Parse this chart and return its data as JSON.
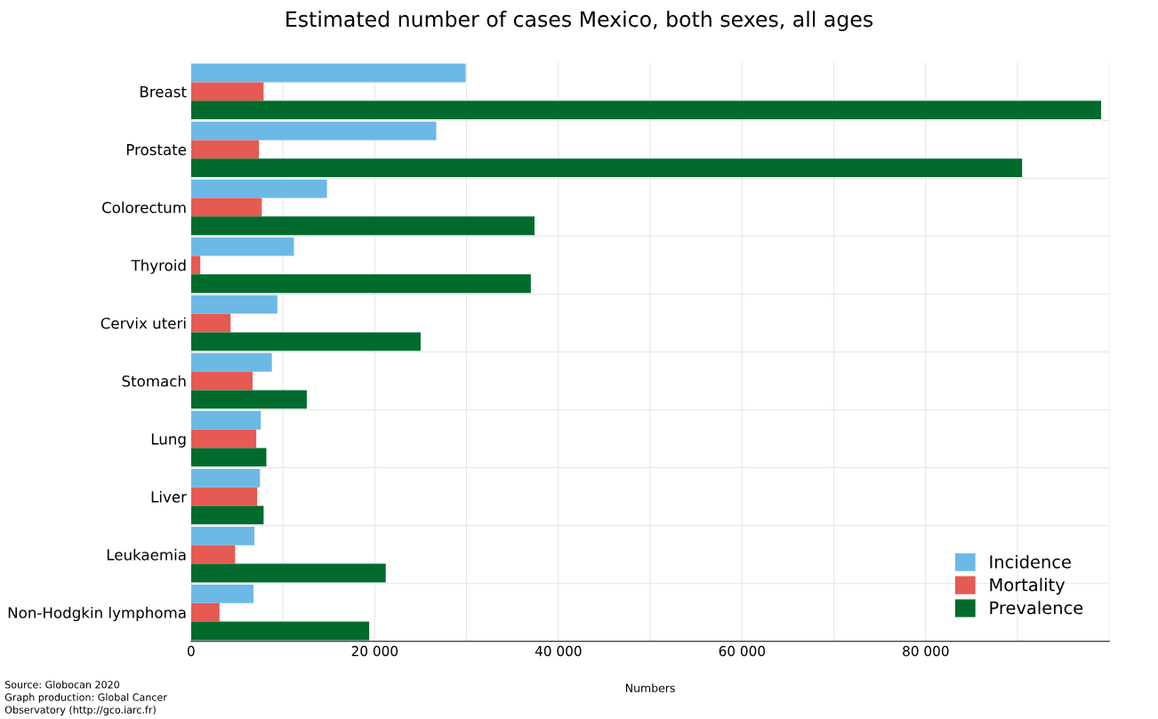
{
  "chart_data": {
    "type": "bar",
    "orientation": "horizontal",
    "title": "Estimated number of cases Mexico, both sexes, all ages",
    "xlabel": "Numbers",
    "categories": [
      "Breast",
      "Prostate",
      "Colorectum",
      "Thyroid",
      "Cervix uteri",
      "Stomach",
      "Lung",
      "Liver",
      "Leukaemia",
      "Non-Hodgkin lymphoma"
    ],
    "series": [
      {
        "name": "Incidence",
        "color": "#6cb9e6",
        "values": [
          29900,
          26700,
          14800,
          11200,
          9400,
          8800,
          7600,
          7500,
          6900,
          6800
        ]
      },
      {
        "name": "Mortality",
        "color": "#e55a53",
        "values": [
          7900,
          7400,
          7700,
          1000,
          4300,
          6700,
          7100,
          7200,
          4800,
          3100
        ]
      },
      {
        "name": "Prevalence",
        "color": "#006b2d",
        "values": [
          99100,
          90500,
          37400,
          37000,
          25000,
          12600,
          8200,
          7900,
          21200,
          19400
        ]
      }
    ],
    "xlim": [
      0,
      100000
    ],
    "xticks": [
      {
        "value": 0,
        "label": "0"
      },
      {
        "value": 10000,
        "label": null
      },
      {
        "value": 20000,
        "label": "20 000"
      },
      {
        "value": 30000,
        "label": null
      },
      {
        "value": 40000,
        "label": "40 000"
      },
      {
        "value": 50000,
        "label": null
      },
      {
        "value": 60000,
        "label": "60 000"
      },
      {
        "value": 70000,
        "label": null
      },
      {
        "value": 80000,
        "label": "80 000"
      },
      {
        "value": 90000,
        "label": null
      },
      {
        "value": 100000,
        "label": null
      }
    ],
    "grid": "x",
    "legend": "bottom right",
    "annotations": [
      "Source: Globocan 2020\nGraph production: Global Cancer\nObservatory (http://gco.iarc.fr)"
    ]
  }
}
